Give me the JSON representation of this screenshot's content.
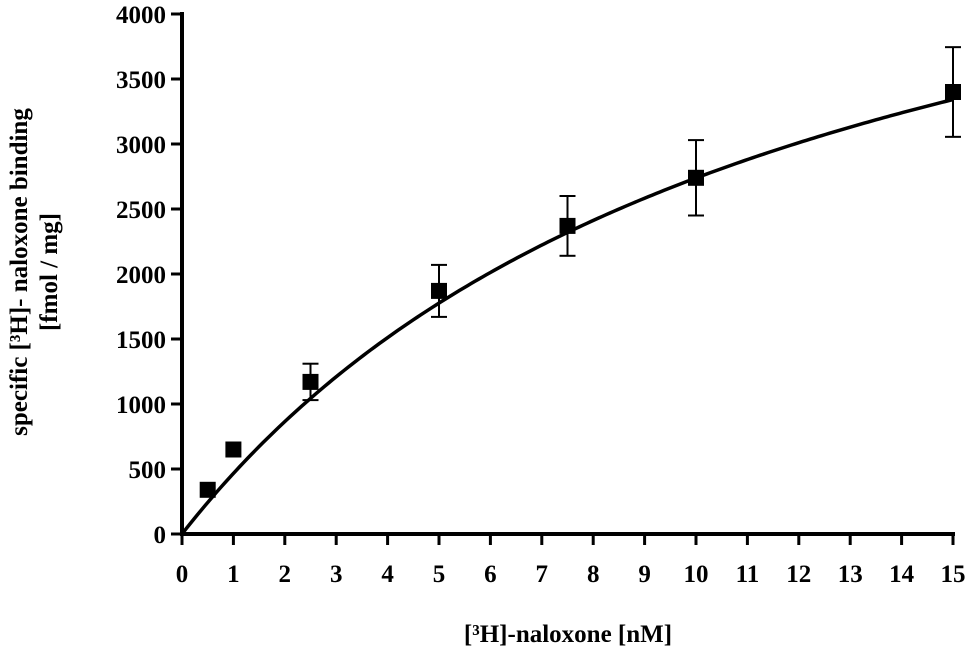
{
  "chart_data": {
    "type": "scatter",
    "xlabel": "[³H]-naloxone [nM]",
    "ylabel_line1": "specific [³H]- naloxone binding",
    "ylabel_line2": "[fmol / mg]",
    "xlim": [
      0,
      15
    ],
    "ylim": [
      0,
      4000
    ],
    "x_ticks": [
      0,
      1,
      2,
      3,
      4,
      5,
      6,
      7,
      8,
      9,
      10,
      11,
      12,
      13,
      14,
      15
    ],
    "x_tick_labels": [
      "0",
      "1",
      "2",
      "3",
      "4",
      "5",
      "6",
      "7",
      "8",
      "9",
      "10",
      "11",
      "12",
      "13",
      "14",
      "15"
    ],
    "y_ticks": [
      0,
      500,
      1000,
      1500,
      2000,
      2500,
      3000,
      3500,
      4000
    ],
    "y_tick_labels": [
      "0",
      "500",
      "1000",
      "1500",
      "2000",
      "2500",
      "3000",
      "3500",
      "4000"
    ],
    "grid": false,
    "marker": "square",
    "points": [
      {
        "x": 0.5,
        "y": 340,
        "err": 0
      },
      {
        "x": 1,
        "y": 650,
        "err": 0
      },
      {
        "x": 2.5,
        "y": 1170,
        "err": 140
      },
      {
        "x": 5,
        "y": 1870,
        "err": 200
      },
      {
        "x": 7.5,
        "y": 2370,
        "err": 230
      },
      {
        "x": 10,
        "y": 2740,
        "err": 290
      },
      {
        "x": 15,
        "y": 3400,
        "err": 345
      }
    ],
    "fit_curve": {
      "model": "one-site saturation binding",
      "Bmax": 5975,
      "Kd": 11.82
    },
    "colors": {
      "marker": "#000000",
      "line": "#000000",
      "axis": "#000000"
    }
  }
}
